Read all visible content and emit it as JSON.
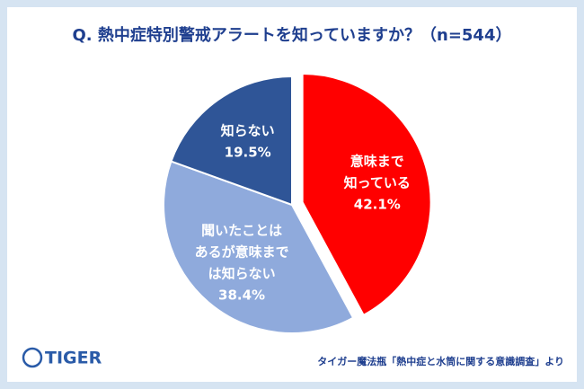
{
  "chart_data": {
    "type": "pie",
    "title": "Q. 熱中症特別警戒アラートを知っていますか？（n=544）",
    "categories": [
      [
        "意味まで",
        "知っている"
      ],
      [
        "聞いたことは",
        "あるが意味まで",
        "は知らない"
      ],
      [
        "知らない"
      ]
    ],
    "values": [
      42.1,
      38.4,
      19.5
    ],
    "value_labels": [
      "42.1%",
      "38.4%",
      "19.5%"
    ],
    "colors": [
      "#ff0000",
      "#8faadc",
      "#2f5597"
    ],
    "exploded": [
      true,
      false,
      false
    ]
  },
  "footer": {
    "logo": "TIGER",
    "source": "タイガー魔法瓶「熱中症と水筒に関する意識調査」より"
  }
}
